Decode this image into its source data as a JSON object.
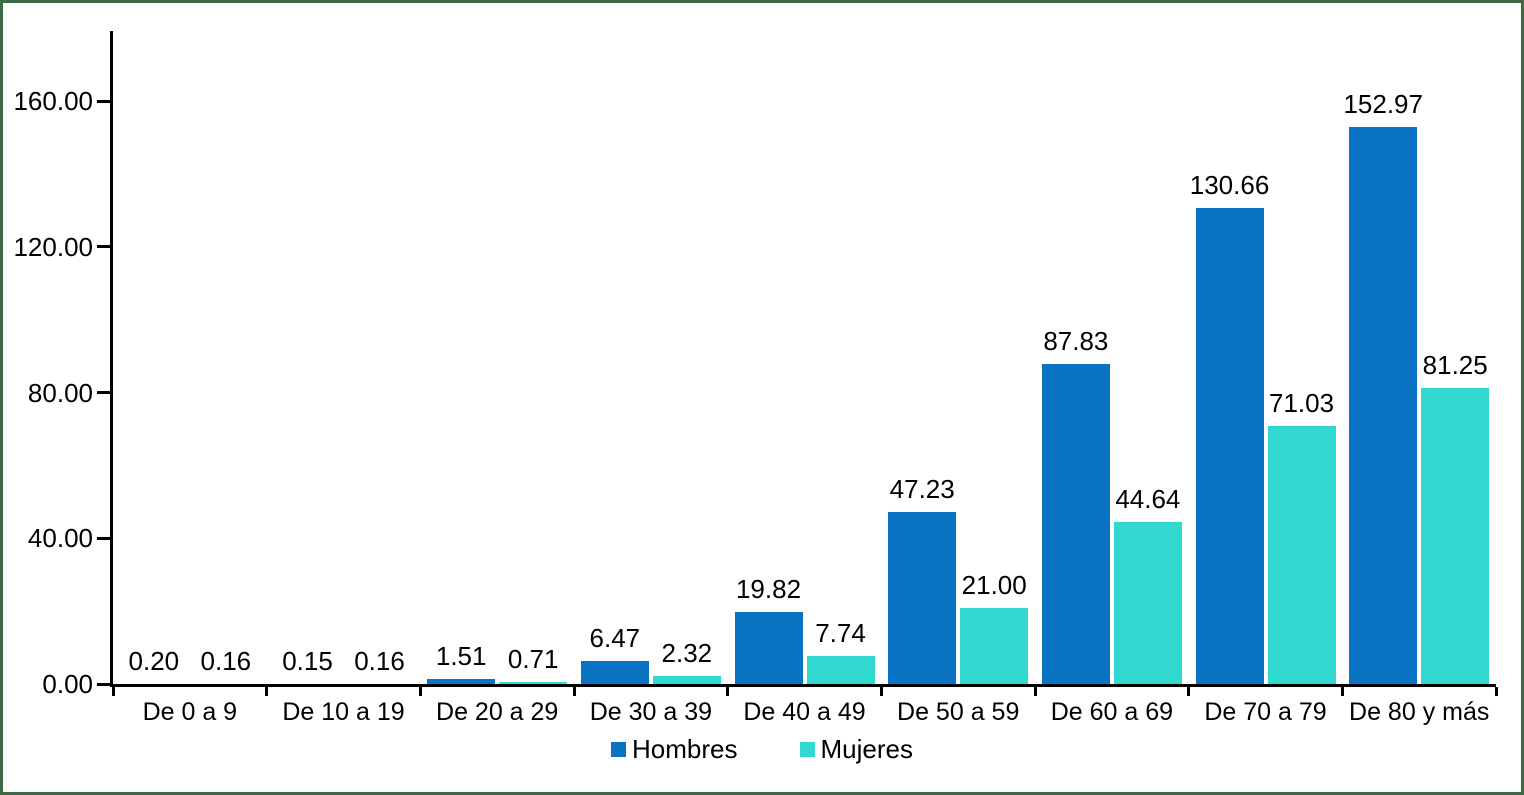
{
  "chart_data": {
    "type": "bar",
    "categories": [
      "De 0 a 9",
      "De 10 a 19",
      "De 20 a 29",
      "De 30 a 39",
      "De 40 a 49",
      "De 50 a 59",
      "De 60 a 69",
      "De 70 a 79",
      "De 80 y más"
    ],
    "series": [
      {
        "name": "Hombres",
        "color": "#0A73C4",
        "values": [
          0.2,
          0.15,
          1.51,
          6.47,
          19.82,
          47.23,
          87.83,
          130.66,
          152.97
        ]
      },
      {
        "name": "Mujeres",
        "color": "#32D9D1",
        "values": [
          0.16,
          0.16,
          0.71,
          2.32,
          7.74,
          21.0,
          44.64,
          71.03,
          81.25
        ]
      }
    ],
    "value_label_decimals": 2,
    "yticks": [
      "0.00",
      "40.00",
      "80.00",
      "120.00",
      "160.00"
    ],
    "ylim": [
      0,
      160
    ],
    "grid": false,
    "legend_position": "bottom",
    "colors": {
      "hombres_bar": "#0A73C4",
      "mujeres_bar": "#32D9D1",
      "axis": "#000000",
      "frame_border": "#3C6A46",
      "background": "#FFFFFF",
      "text": "#000000"
    }
  }
}
